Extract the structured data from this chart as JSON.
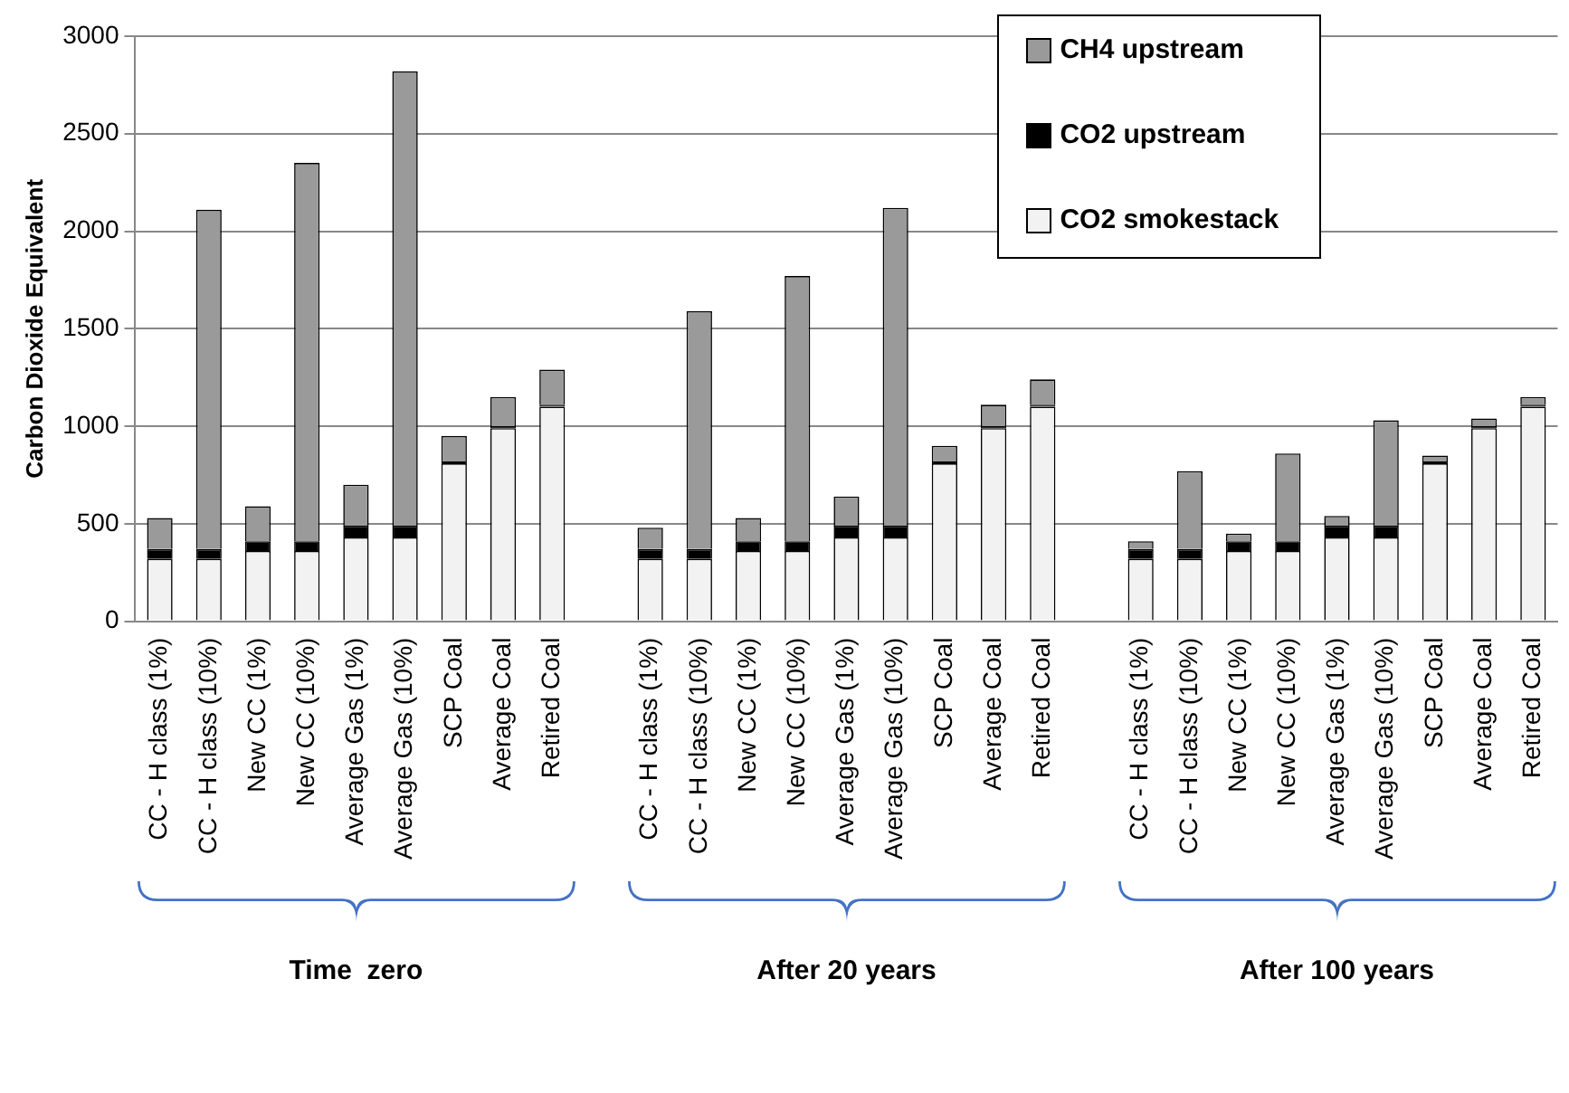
{
  "chart_data": {
    "type": "bar",
    "stacked": true,
    "ylabel": "Carbon Dioxide Equivalent",
    "categories": [
      "CC - H class (1%)",
      "CC - H class (10%)",
      "New CC (1%)",
      "New CC (10%)",
      "Average Gas (1%)",
      "Average Gas (10%)",
      "SCP Coal",
      "Average Coal",
      "Retired Coal",
      null,
      "CC - H class (1%)",
      "CC - H class (10%)",
      "New CC (1%)",
      "New CC (10%)",
      "Average Gas (1%)",
      "Average Gas (10%)",
      "SCP Coal",
      "Average Coal",
      "Retired Coal",
      null,
      "CC - H class (1%)",
      "CC - H class (10%)",
      "New CC (1%)",
      "New CC (10%)",
      "Average Gas (1%)",
      "Average Gas (10%)",
      "SCP Coal",
      "Average Coal",
      "Retired Coal"
    ],
    "series": [
      {
        "name": "CO2 smokestack",
        "color": "#f2f2f2",
        "values": [
          320,
          320,
          360,
          360,
          430,
          430,
          810,
          990,
          1100,
          null,
          320,
          320,
          360,
          360,
          430,
          430,
          810,
          990,
          1100,
          null,
          320,
          320,
          360,
          360,
          430,
          430,
          810,
          990,
          1100
        ]
      },
      {
        "name": "CO2 upstream",
        "color": "#000000",
        "values": [
          50,
          50,
          50,
          50,
          60,
          60,
          10,
          10,
          10,
          null,
          50,
          50,
          50,
          50,
          60,
          60,
          10,
          10,
          10,
          null,
          50,
          50,
          50,
          50,
          60,
          60,
          10,
          10,
          10
        ]
      },
      {
        "name": "CH4 upstream",
        "color": "#9a9a9a",
        "values": [
          160,
          1740,
          180,
          1940,
          210,
          2330,
          130,
          150,
          180,
          null,
          110,
          1220,
          120,
          1360,
          150,
          1630,
          80,
          110,
          130,
          null,
          40,
          400,
          40,
          450,
          50,
          540,
          30,
          40,
          40
        ]
      }
    ],
    "ylim": [
      0,
      3000
    ],
    "yticks": [
      0,
      500,
      1000,
      1500,
      2000,
      2500,
      3000
    ],
    "grid": "y",
    "legend": "top right",
    "annotations": [
      "Time  zero",
      "After 20 years",
      "After 100 years"
    ]
  }
}
